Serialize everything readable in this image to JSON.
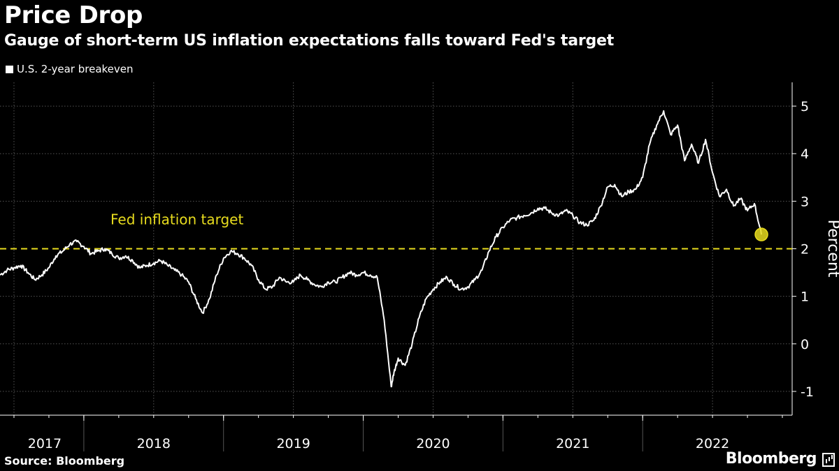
{
  "header": {
    "title": "Price Drop",
    "subtitle": "Gauge of short-term US inflation expectations falls toward Fed's target"
  },
  "footer": {
    "source": "Source: Bloomberg",
    "logo": "Bloomberg"
  },
  "colors": {
    "background": "#000000",
    "series": "#ffffff",
    "target_line": "#e8dc1e",
    "highlight": "#e8dc1e",
    "grid": "#555555"
  },
  "chart_data": {
    "type": "line",
    "ylabel": "Percent",
    "ylim": [
      -1.5,
      5.5
    ],
    "yticks": [
      -1,
      0,
      1,
      2,
      3,
      4,
      5
    ],
    "xlim": [
      2017.4,
      2023.07
    ],
    "year_labels": [
      {
        "label": "2017",
        "center": 2017.72
      },
      {
        "label": "2018",
        "center": 2018.5
      },
      {
        "label": "2019",
        "center": 2019.5
      },
      {
        "label": "2020",
        "center": 2020.5
      },
      {
        "label": "2021",
        "center": 2021.5
      },
      {
        "label": "2022",
        "center": 2022.5
      }
    ],
    "year_boundaries": [
      2018.0,
      2019.0,
      2020.0,
      2021.0,
      2022.0
    ],
    "vertical_gridlines": [
      2017.5,
      2018.5,
      2019.5,
      2020.5,
      2021.5,
      2022.5
    ],
    "legend": [
      "U.S. 2-year breakeven"
    ],
    "reference_line": {
      "value": 2,
      "label": "Fed inflation target"
    },
    "grid": true,
    "series": [
      {
        "name": "U.S. 2-year breakeven",
        "x": [
          2017.4,
          2017.45,
          2017.5,
          2017.55,
          2017.6,
          2017.65,
          2017.7,
          2017.75,
          2017.8,
          2017.85,
          2017.9,
          2017.95,
          2018.0,
          2018.05,
          2018.1,
          2018.15,
          2018.2,
          2018.25,
          2018.3,
          2018.35,
          2018.4,
          2018.45,
          2018.5,
          2018.55,
          2018.6,
          2018.65,
          2018.7,
          2018.75,
          2018.8,
          2018.85,
          2018.9,
          2018.95,
          2019.0,
          2019.05,
          2019.1,
          2019.15,
          2019.2,
          2019.25,
          2019.3,
          2019.35,
          2019.4,
          2019.45,
          2019.5,
          2019.55,
          2019.6,
          2019.65,
          2019.7,
          2019.75,
          2019.8,
          2019.85,
          2019.9,
          2019.95,
          2020.0,
          2020.05,
          2020.1,
          2020.15,
          2020.2,
          2020.22,
          2020.25,
          2020.3,
          2020.35,
          2020.4,
          2020.45,
          2020.5,
          2020.55,
          2020.6,
          2020.65,
          2020.7,
          2020.75,
          2020.8,
          2020.85,
          2020.9,
          2020.95,
          2021.0,
          2021.05,
          2021.1,
          2021.15,
          2021.2,
          2021.25,
          2021.3,
          2021.35,
          2021.4,
          2021.45,
          2021.5,
          2021.55,
          2021.6,
          2021.65,
          2021.7,
          2021.75,
          2021.8,
          2021.85,
          2021.9,
          2021.95,
          2022.0,
          2022.05,
          2022.1,
          2022.15,
          2022.2,
          2022.25,
          2022.3,
          2022.35,
          2022.4,
          2022.45,
          2022.5,
          2022.55,
          2022.6,
          2022.65,
          2022.7,
          2022.75,
          2022.8,
          2022.85
        ],
        "values": [
          1.45,
          1.55,
          1.6,
          1.65,
          1.5,
          1.35,
          1.45,
          1.6,
          1.85,
          1.95,
          2.1,
          2.15,
          2.05,
          1.9,
          1.95,
          2.0,
          1.9,
          1.8,
          1.85,
          1.75,
          1.6,
          1.65,
          1.7,
          1.75,
          1.65,
          1.55,
          1.45,
          1.3,
          0.95,
          0.65,
          0.95,
          1.45,
          1.8,
          1.95,
          1.9,
          1.8,
          1.65,
          1.35,
          1.15,
          1.2,
          1.4,
          1.3,
          1.3,
          1.45,
          1.35,
          1.25,
          1.2,
          1.3,
          1.3,
          1.4,
          1.5,
          1.45,
          1.5,
          1.45,
          1.4,
          0.5,
          -0.9,
          -0.6,
          -0.3,
          -0.45,
          0.0,
          0.55,
          0.95,
          1.15,
          1.3,
          1.4,
          1.25,
          1.15,
          1.2,
          1.35,
          1.55,
          1.95,
          2.25,
          2.45,
          2.6,
          2.65,
          2.7,
          2.75,
          2.85,
          2.85,
          2.75,
          2.7,
          2.8,
          2.7,
          2.55,
          2.5,
          2.6,
          2.9,
          3.3,
          3.35,
          3.1,
          3.2,
          3.25,
          3.5,
          4.2,
          4.6,
          4.9,
          4.4,
          4.6,
          3.85,
          4.2,
          3.8,
          4.3,
          3.6,
          3.1,
          3.25,
          2.9,
          3.05,
          2.8,
          2.95,
          2.3
        ]
      }
    ],
    "highlight_point": {
      "x": 2022.85,
      "value": 2.3
    }
  }
}
